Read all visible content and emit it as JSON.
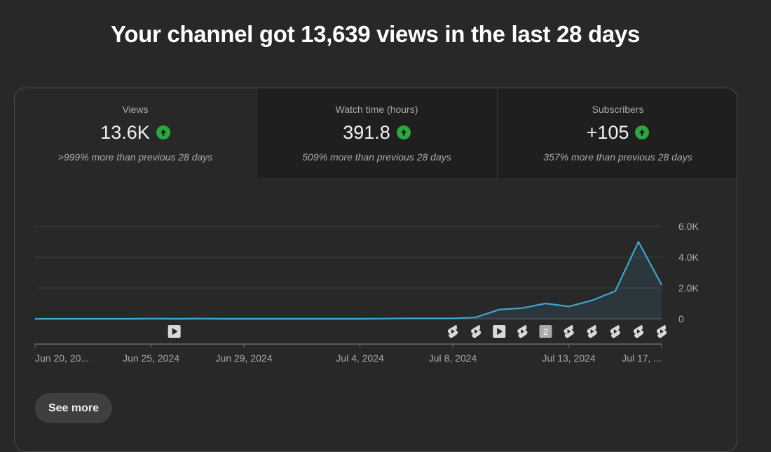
{
  "headline": "Your channel got 13,639 views in the last 28 days",
  "tabs": [
    {
      "label": "Views",
      "value": "13.6K",
      "delta": ">999% more than previous 28 days",
      "trend": "up"
    },
    {
      "label": "Watch time (hours)",
      "value": "391.8",
      "delta": "509% more than previous 28 days",
      "trend": "up"
    },
    {
      "label": "Subscribers",
      "value": "+105",
      "delta": "357% more than previous 28 days",
      "trend": "up"
    }
  ],
  "colors": {
    "line": "#3ea6cc",
    "up": "#2ba640",
    "grid": "#3f3f3f"
  },
  "chart_data": {
    "type": "area",
    "x": [
      "Jun 20, 2024",
      "Jun 21, 2024",
      "Jun 22, 2024",
      "Jun 23, 2024",
      "Jun 24, 2024",
      "Jun 25, 2024",
      "Jun 26, 2024",
      "Jun 27, 2024",
      "Jun 28, 2024",
      "Jun 29, 2024",
      "Jun 30, 2024",
      "Jul 1, 2024",
      "Jul 2, 2024",
      "Jul 3, 2024",
      "Jul 4, 2024",
      "Jul 5, 2024",
      "Jul 6, 2024",
      "Jul 7, 2024",
      "Jul 8, 2024",
      "Jul 9, 2024",
      "Jul 10, 2024",
      "Jul 11, 2024",
      "Jul 12, 2024",
      "Jul 13, 2024",
      "Jul 14, 2024",
      "Jul 15, 2024",
      "Jul 16, 2024",
      "Jul 17, 2024"
    ],
    "series": [
      {
        "values": [
          0,
          0,
          0,
          0,
          0,
          20,
          5,
          20,
          5,
          5,
          5,
          5,
          5,
          5,
          5,
          15,
          30,
          30,
          30,
          100,
          600,
          700,
          1000,
          800,
          1200,
          1800,
          5000,
          2200
        ]
      }
    ],
    "ylim": [
      0,
      6000
    ],
    "yticks": [
      "6.0K",
      "4.0K",
      "2.0K",
      "0"
    ],
    "xtick_labels": [
      {
        "label": "Jun 20, 20...",
        "index": 0
      },
      {
        "label": "Jun 25, 2024",
        "index": 5
      },
      {
        "label": "Jun 29, 2024",
        "index": 9
      },
      {
        "label": "Jul 4, 2024",
        "index": 14
      },
      {
        "label": "Jul 8, 2024",
        "index": 18
      },
      {
        "label": "Jul 13, 2024",
        "index": 23
      },
      {
        "label": "Jul 17, ...",
        "index": 27
      }
    ],
    "grid": true,
    "upload_markers": [
      {
        "index": 6,
        "kind": "video"
      },
      {
        "index": 18,
        "kind": "short"
      },
      {
        "index": 19,
        "kind": "short"
      },
      {
        "index": 20,
        "kind": "video"
      },
      {
        "index": 21,
        "kind": "short"
      },
      {
        "index": 22,
        "kind": "count",
        "label": "2"
      },
      {
        "index": 23,
        "kind": "short"
      },
      {
        "index": 24,
        "kind": "short"
      },
      {
        "index": 25,
        "kind": "short"
      },
      {
        "index": 26,
        "kind": "short"
      },
      {
        "index": 27,
        "kind": "short"
      }
    ]
  },
  "see_more_label": "See more"
}
